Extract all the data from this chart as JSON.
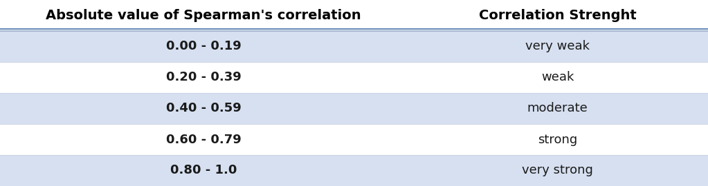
{
  "col_headers": [
    "Absolute value of Spearman's correlation",
    "Correlation Strenght"
  ],
  "rows": [
    [
      "0.00 - 0.19",
      "very weak"
    ],
    [
      "0.20 - 0.39",
      "weak"
    ],
    [
      "0.40 - 0.59",
      "moderate"
    ],
    [
      "0.60 - 0.79",
      "strong"
    ],
    [
      "0.80 - 1.0",
      "very strong"
    ]
  ],
  "shaded_rows": [
    0,
    2,
    4
  ],
  "row_bg_shaded": "#d6e0f0",
  "row_bg_white": "#ffffff",
  "header_bg": "#ffffff",
  "header_color": "#000000",
  "text_color": "#1a1a1a",
  "border_color_top": "#6b8cba",
  "border_color_bottom": "#a8b8d0",
  "col_split": 0.575,
  "header_fontsize": 14,
  "cell_fontsize": 13,
  "fig_width": 10.23,
  "fig_height": 2.7,
  "dpi": 100
}
